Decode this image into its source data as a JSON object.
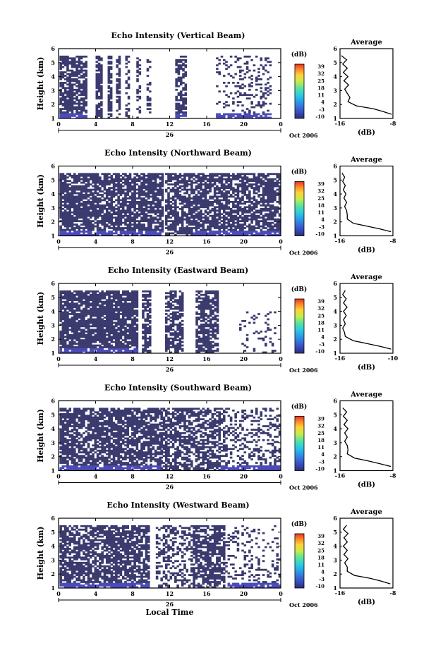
{
  "figure": {
    "xlabel": "Local Time",
    "date_label": "Oct 2006",
    "day_label": "26",
    "ylabel": "Height (km)",
    "cb_unit": "(dB)",
    "avg_title": "Average",
    "avg_xlabel": "(dB)",
    "fill_color": "#3a3a6e",
    "strong_color": "#4a4ab8"
  },
  "chart_data": [
    {
      "type": "heatmap",
      "title": "Echo Intensity (Vertical Beam)",
      "xlabel": "Local Time",
      "ylabel": "Height (km)",
      "x_ticks": [
        "0",
        "4",
        "8",
        "12",
        "16",
        "20",
        "0"
      ],
      "y_ticks": [
        "1",
        "2",
        "3",
        "4",
        "5",
        "6"
      ],
      "xlim": [
        0,
        24
      ],
      "ylim": [
        1,
        6
      ],
      "colorbar": {
        "label": "(dB)",
        "ticks": [
          "39",
          "32",
          "25",
          "18",
          "11",
          "4",
          "-3",
          "-10"
        ],
        "range": [
          -10,
          39
        ]
      },
      "data_top_km": 5.5,
      "columns": [
        {
          "t0": 0.1,
          "t1": 3.0,
          "lo": 1.0,
          "hi": 5.5,
          "gap": 0.25,
          "low_strong": true
        },
        {
          "t0": 4.0,
          "t1": 4.6,
          "lo": 1.0,
          "hi": 5.5,
          "gap": 0.2
        },
        {
          "t0": 5.3,
          "t1": 5.8,
          "lo": 1.0,
          "hi": 5.5,
          "gap": 0.2
        },
        {
          "t0": 6.2,
          "t1": 6.6,
          "lo": 1.0,
          "hi": 5.5,
          "gap": 0.4
        },
        {
          "t0": 7.2,
          "t1": 7.6,
          "lo": 1.0,
          "hi": 5.5,
          "gap": 0.5
        },
        {
          "t0": 8.4,
          "t1": 8.7,
          "lo": 1.0,
          "hi": 5.5,
          "gap": 0.55
        },
        {
          "t0": 9.5,
          "t1": 10.0,
          "lo": 1.0,
          "hi": 5.5,
          "gap": 0.6
        },
        {
          "t0": 12.6,
          "t1": 13.7,
          "lo": 1.0,
          "hi": 5.5,
          "gap": 0.3,
          "low_strong": true
        },
        {
          "t0": 17.0,
          "t1": 23.0,
          "lo": 1.0,
          "hi": 5.5,
          "gap": 0.75,
          "low_strong": true
        }
      ],
      "average": {
        "x_ticks": [
          "-16",
          "-8"
        ],
        "xlim": [
          -16,
          -8
        ],
        "profile": [
          [
            -15.8,
            5.5
          ],
          [
            -15.0,
            5.2
          ],
          [
            -15.6,
            4.9
          ],
          [
            -14.9,
            4.6
          ],
          [
            -15.5,
            4.3
          ],
          [
            -14.8,
            4.0
          ],
          [
            -15.4,
            3.7
          ],
          [
            -14.7,
            3.4
          ],
          [
            -15.3,
            3.1
          ],
          [
            -14.9,
            2.8
          ],
          [
            -14.5,
            2.5
          ],
          [
            -14.8,
            2.2
          ],
          [
            -13.5,
            1.9
          ],
          [
            -11.0,
            1.7
          ],
          [
            -9.5,
            1.5
          ],
          [
            -8.2,
            1.3
          ]
        ]
      }
    },
    {
      "type": "heatmap",
      "title": "Echo Intensity (Northward Beam)",
      "xlabel": "Local Time",
      "ylabel": "Height (km)",
      "x_ticks": [
        "0",
        "4",
        "8",
        "12",
        "16",
        "20",
        "0"
      ],
      "y_ticks": [
        "1",
        "2",
        "3",
        "4",
        "5",
        "6"
      ],
      "xlim": [
        0,
        24
      ],
      "ylim": [
        1,
        6
      ],
      "colorbar": {
        "label": "(dB)",
        "ticks": [
          "39",
          "32",
          "25",
          "18",
          "11",
          "4",
          "-3",
          "-10"
        ],
        "range": [
          -10,
          39
        ]
      },
      "data_top_km": 5.5,
      "columns": [
        {
          "t0": 0.1,
          "t1": 11.2,
          "lo": 1.0,
          "hi": 5.5,
          "gap": 0.2,
          "low_strong": true
        },
        {
          "t0": 11.5,
          "t1": 14.5,
          "lo": 1.0,
          "hi": 5.5,
          "gap": 0.3
        },
        {
          "t0": 14.5,
          "t1": 23.8,
          "lo": 1.0,
          "hi": 5.5,
          "gap": 0.25,
          "low_strong": true
        }
      ],
      "average": {
        "x_ticks": [
          "-16",
          "-8"
        ],
        "xlim": [
          -16,
          -8
        ],
        "profile": [
          [
            -15.7,
            5.5
          ],
          [
            -15.3,
            5.2
          ],
          [
            -15.6,
            4.9
          ],
          [
            -15.2,
            4.6
          ],
          [
            -15.5,
            4.3
          ],
          [
            -15.1,
            4.0
          ],
          [
            -15.4,
            3.7
          ],
          [
            -15.0,
            3.4
          ],
          [
            -15.3,
            3.1
          ],
          [
            -15.0,
            2.8
          ],
          [
            -14.9,
            2.5
          ],
          [
            -14.9,
            2.2
          ],
          [
            -14.0,
            1.9
          ],
          [
            -12.0,
            1.7
          ],
          [
            -10.0,
            1.5
          ],
          [
            -8.3,
            1.3
          ]
        ]
      }
    },
    {
      "type": "heatmap",
      "title": "Echo Intensity (Eastward Beam)",
      "xlabel": "Local Time",
      "ylabel": "Height (km)",
      "x_ticks": [
        "0",
        "4",
        "8",
        "12",
        "16",
        "20",
        "0"
      ],
      "y_ticks": [
        "1",
        "2",
        "3",
        "4",
        "5",
        "6"
      ],
      "xlim": [
        0,
        24
      ],
      "ylim": [
        1,
        6
      ],
      "colorbar": {
        "label": "(dB)",
        "ticks": [
          "39",
          "32",
          "25",
          "18",
          "11",
          "4",
          "-3",
          "-10"
        ],
        "range": [
          -10,
          39
        ]
      },
      "data_top_km": 5.5,
      "columns": [
        {
          "t0": 0.1,
          "t1": 8.5,
          "lo": 1.0,
          "hi": 5.5,
          "gap": 0.15,
          "low_strong": true
        },
        {
          "t0": 9.0,
          "t1": 10.0,
          "lo": 1.0,
          "hi": 5.5,
          "gap": 0.3
        },
        {
          "t0": 11.5,
          "t1": 13.5,
          "lo": 1.0,
          "hi": 5.5,
          "gap": 0.3
        },
        {
          "t0": 14.8,
          "t1": 17.3,
          "lo": 1.0,
          "hi": 5.5,
          "gap": 0.25
        },
        {
          "t0": 19.5,
          "t1": 23.5,
          "lo": 1.0,
          "hi": 4.0,
          "gap": 0.85
        }
      ],
      "average": {
        "x_ticks": [
          "-16",
          "-10"
        ],
        "xlim": [
          -16,
          -10
        ],
        "profile": [
          [
            -15.4,
            5.5
          ],
          [
            -15.7,
            5.2
          ],
          [
            -15.3,
            4.9
          ],
          [
            -15.6,
            4.6
          ],
          [
            -15.2,
            4.3
          ],
          [
            -15.6,
            4.0
          ],
          [
            -15.3,
            3.7
          ],
          [
            -15.6,
            3.4
          ],
          [
            -15.4,
            3.1
          ],
          [
            -15.7,
            2.8
          ],
          [
            -15.5,
            2.5
          ],
          [
            -15.4,
            2.2
          ],
          [
            -14.5,
            1.9
          ],
          [
            -13.0,
            1.7
          ],
          [
            -11.5,
            1.5
          ],
          [
            -10.2,
            1.3
          ]
        ]
      }
    },
    {
      "type": "heatmap",
      "title": "Echo Intensity (Southward Beam)",
      "xlabel": "Local Time",
      "ylabel": "Height (km)",
      "x_ticks": [
        "0",
        "4",
        "8",
        "12",
        "16",
        "20",
        "0"
      ],
      "y_ticks": [
        "1",
        "2",
        "3",
        "4",
        "5",
        "6"
      ],
      "xlim": [
        0,
        24
      ],
      "ylim": [
        1,
        6
      ],
      "colorbar": {
        "label": "(dB)",
        "ticks": [
          "39",
          "32",
          "25",
          "18",
          "11",
          "4",
          "-3",
          "-10"
        ],
        "range": [
          -10,
          39
        ]
      },
      "data_top_km": 5.5,
      "columns": [
        {
          "t0": 0.1,
          "t1": 11.0,
          "lo": 1.0,
          "hi": 5.5,
          "gap": 0.25,
          "low_strong": true
        },
        {
          "t0": 11.0,
          "t1": 17.5,
          "lo": 1.0,
          "hi": 5.5,
          "gap": 0.35
        },
        {
          "t0": 17.5,
          "t1": 23.8,
          "lo": 1.0,
          "hi": 5.5,
          "gap": 0.7,
          "low_strong": true
        }
      ],
      "average": {
        "x_ticks": [
          "-16",
          "-8"
        ],
        "xlim": [
          -16,
          -8
        ],
        "profile": [
          [
            -15.6,
            5.5
          ],
          [
            -15.0,
            5.2
          ],
          [
            -15.5,
            4.9
          ],
          [
            -14.9,
            4.6
          ],
          [
            -15.4,
            4.3
          ],
          [
            -14.8,
            4.0
          ],
          [
            -15.3,
            3.7
          ],
          [
            -14.9,
            3.4
          ],
          [
            -15.3,
            3.1
          ],
          [
            -14.9,
            2.8
          ],
          [
            -14.8,
            2.5
          ],
          [
            -14.9,
            2.2
          ],
          [
            -13.8,
            1.9
          ],
          [
            -11.8,
            1.7
          ],
          [
            -10.0,
            1.5
          ],
          [
            -8.3,
            1.3
          ]
        ]
      }
    },
    {
      "type": "heatmap",
      "title": "Echo Intensity (Westward Beam)",
      "xlabel": "Local Time",
      "ylabel": "Height (km)",
      "x_ticks": [
        "0",
        "4",
        "8",
        "12",
        "16",
        "20",
        "0"
      ],
      "y_ticks": [
        "1",
        "2",
        "3",
        "4",
        "5",
        "6"
      ],
      "xlim": [
        0,
        24
      ],
      "ylim": [
        1,
        6
      ],
      "colorbar": {
        "label": "(dB)",
        "ticks": [
          "39",
          "32",
          "25",
          "18",
          "11",
          "4",
          "-3",
          "-10"
        ],
        "range": [
          -10,
          39
        ]
      },
      "data_top_km": 5.5,
      "columns": [
        {
          "t0": 0.1,
          "t1": 9.8,
          "lo": 1.0,
          "hi": 5.5,
          "gap": 0.25,
          "low_strong": true
        },
        {
          "t0": 10.5,
          "t1": 14.5,
          "lo": 1.0,
          "hi": 5.5,
          "gap": 0.6
        },
        {
          "t0": 14.5,
          "t1": 18.0,
          "lo": 1.0,
          "hi": 5.5,
          "gap": 0.3
        },
        {
          "t0": 18.0,
          "t1": 23.8,
          "lo": 1.0,
          "hi": 5.5,
          "gap": 0.8,
          "low_strong": true
        }
      ],
      "average": {
        "x_ticks": [
          "-16",
          "-8"
        ],
        "xlim": [
          -16,
          -8
        ],
        "profile": [
          [
            -15.0,
            5.5
          ],
          [
            -15.5,
            5.2
          ],
          [
            -14.8,
            4.9
          ],
          [
            -15.4,
            4.6
          ],
          [
            -14.9,
            4.3
          ],
          [
            -15.5,
            4.0
          ],
          [
            -14.9,
            3.7
          ],
          [
            -15.4,
            3.4
          ],
          [
            -14.8,
            3.1
          ],
          [
            -15.3,
            2.8
          ],
          [
            -14.9,
            2.5
          ],
          [
            -14.9,
            2.2
          ],
          [
            -13.8,
            1.9
          ],
          [
            -11.5,
            1.7
          ],
          [
            -9.8,
            1.5
          ],
          [
            -8.4,
            1.3
          ]
        ]
      }
    }
  ]
}
